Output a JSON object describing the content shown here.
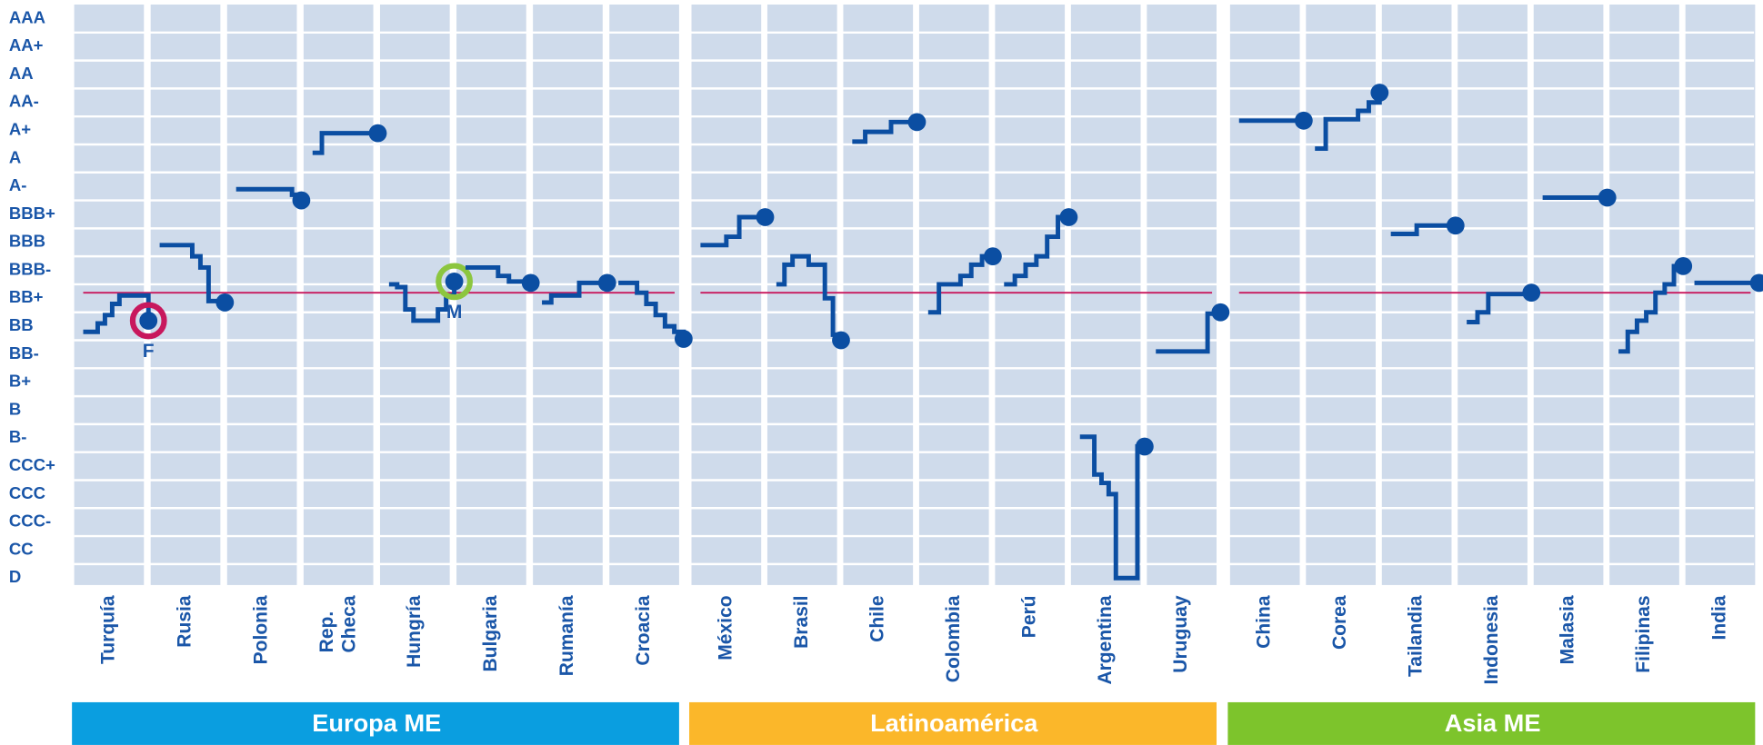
{
  "chart_data": {
    "type": "step-panels",
    "ylim": [
      0.75,
      21.5
    ],
    "yticks": [
      {
        "value": 21,
        "label": "AAA"
      },
      {
        "value": 20,
        "label": "AA+"
      },
      {
        "value": 19,
        "label": "AA"
      },
      {
        "value": 18,
        "label": "AA-"
      },
      {
        "value": 17,
        "label": "A+"
      },
      {
        "value": 16,
        "label": "A"
      },
      {
        "value": 15,
        "label": "A-"
      },
      {
        "value": 14,
        "label": "BBB+"
      },
      {
        "value": 13,
        "label": "BBB"
      },
      {
        "value": 12,
        "label": "BBB-"
      },
      {
        "value": 11,
        "label": "BB+"
      },
      {
        "value": 10,
        "label": "BB"
      },
      {
        "value": 9,
        "label": "BB-"
      },
      {
        "value": 8,
        "label": "B+"
      },
      {
        "value": 7,
        "label": "B"
      },
      {
        "value": 6,
        "label": "B-"
      },
      {
        "value": 5,
        "label": "CCC+"
      },
      {
        "value": 4,
        "label": "CCC"
      },
      {
        "value": 3,
        "label": "CCC-"
      },
      {
        "value": 2,
        "label": "CC"
      },
      {
        "value": 1,
        "label": "D"
      }
    ],
    "grid": true,
    "line_color": "#0b4ea2",
    "reference_color": "#c8185d",
    "regions": [
      {
        "name": "Europa ME",
        "color": "#0a9ee0",
        "reference": 11.2,
        "countries": [
          {
            "name": "Turquía",
            "values": [
              9.8,
              9.8,
              10.1,
              10.4,
              10.8,
              11.1,
              11.1,
              11.1,
              11.1,
              10.2
            ],
            "marker": {
              "label": "F",
              "color": "#c8185d"
            }
          },
          {
            "name": "Rusia",
            "values": [
              12.9,
              12.9,
              12.9,
              12.9,
              12.5,
              12.1,
              10.9,
              10.9,
              10.85
            ]
          },
          {
            "name": "Polonia",
            "values": [
              14.9,
              14.9,
              14.9,
              14.9,
              14.9,
              14.9,
              14.7,
              14.5
            ]
          },
          {
            "name": [
              "Rep.",
              "Checa"
            ],
            "values": [
              16.2,
              16.9,
              16.9,
              16.9,
              16.9,
              16.9,
              16.9,
              16.9
            ]
          },
          {
            "name": "Hungría",
            "values": [
              11.5,
              11.4,
              10.6,
              10.2,
              10.2,
              10.2,
              10.6,
              11.1,
              11.6
            ],
            "marker": {
              "label": "M",
              "color": "#8cc63f"
            }
          },
          {
            "name": "Bulgaria",
            "values": [
              12.1,
              12.1,
              12.1,
              11.8,
              11.6,
              11.6,
              11.55
            ]
          },
          {
            "name": "Rumanía",
            "values": [
              10.85,
              11.1,
              11.1,
              11.1,
              11.55,
              11.55,
              11.55,
              11.55
            ]
          },
          {
            "name": "Croacia",
            "values": [
              11.55,
              11.55,
              11.2,
              10.8,
              10.4,
              10.0,
              9.8,
              9.55
            ]
          }
        ]
      },
      {
        "name": "Latinoamérica",
        "color": "#fbb72a",
        "reference": 11.2,
        "countries": [
          {
            "name": "México",
            "values": [
              12.9,
              12.9,
              13.2,
              13.9,
              13.9,
              13.9
            ]
          },
          {
            "name": "Brasil",
            "values": [
              11.5,
              12.2,
              12.5,
              12.5,
              12.2,
              12.2,
              11.0,
              9.7,
              9.5
            ]
          },
          {
            "name": "Chile",
            "values": [
              16.6,
              16.95,
              16.95,
              17.3,
              17.3,
              17.3
            ]
          },
          {
            "name": "Colombia",
            "values": [
              10.5,
              11.5,
              11.5,
              11.8,
              12.2,
              12.5,
              12.5
            ]
          },
          {
            "name": "Perú",
            "values": [
              11.5,
              11.8,
              12.2,
              12.5,
              13.2,
              13.9,
              13.9
            ]
          },
          {
            "name": "Argentina",
            "values": [
              6.05,
              6.05,
              4.7,
              4.4,
              4.0,
              1,
              1,
              1,
              5.7,
              5.7
            ]
          },
          {
            "name": "Uruguay",
            "values": [
              9.1,
              9.1,
              9.1,
              9.1,
              10.45,
              10.5
            ]
          }
        ]
      },
      {
        "name": "Asia ME",
        "color": "#7dc42c",
        "reference": 11.2,
        "countries": [
          {
            "name": "China",
            "values": [
              17.35,
              17.35,
              17.35,
              17.35,
              17.35
            ]
          },
          {
            "name": "Corea",
            "values": [
              16.35,
              17.4,
              17.4,
              17.4,
              17.7,
              18.0,
              18.35
            ]
          },
          {
            "name": "Tailandia",
            "values": [
              13.3,
              13.3,
              13.6,
              13.6,
              13.6,
              13.6
            ]
          },
          {
            "name": "Indonesia",
            "values": [
              10.15,
              10.5,
              11.15,
              11.15,
              11.15,
              11.15,
              11.2
            ]
          },
          {
            "name": "Malasia",
            "values": [
              14.6,
              14.6,
              14.6,
              14.6,
              14.6
            ]
          },
          {
            "name": "Filipinas",
            "values": [
              9.1,
              9.8,
              10.2,
              10.5,
              11.2,
              11.5,
              12.15,
              12.15
            ]
          },
          {
            "name": "India",
            "values": [
              11.55,
              11.55,
              11.55,
              11.55,
              11.55
            ]
          }
        ]
      }
    ]
  }
}
